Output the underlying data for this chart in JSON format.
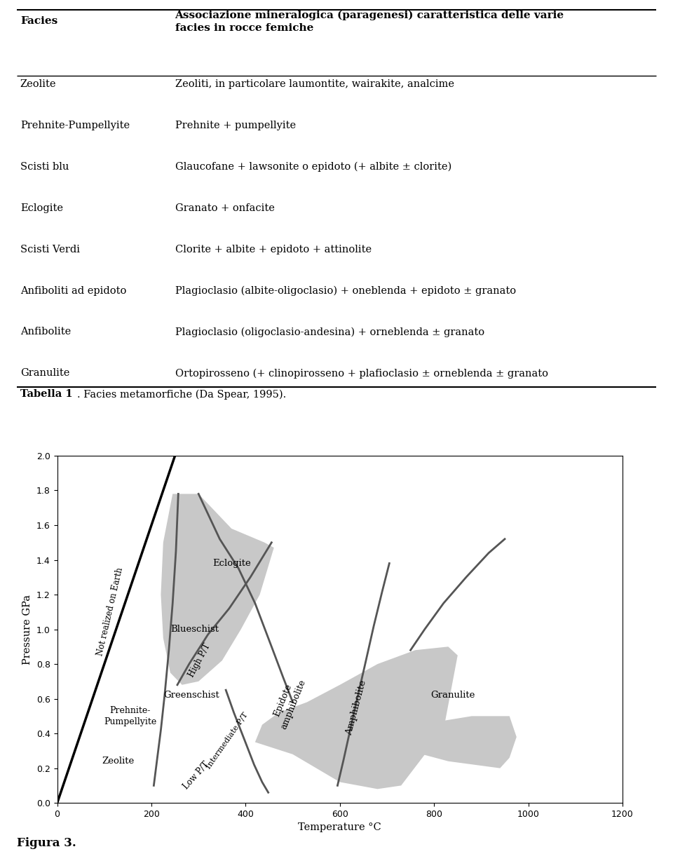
{
  "table_title_col1": "Facies",
  "table_title_col2": "Associazione mineralogica (paragenesi) caratteristica delle varie\nfacies in rocce femiche",
  "table_rows": [
    [
      "Zeolite",
      "Zeoliti, in particolare laumontite, wairakite, analcime"
    ],
    [
      "Prehnite-Pumpellyite",
      "Prehnite + pumpellyite"
    ],
    [
      "Scisti blu",
      "Glaucofane + lawsonite o epidoto (+ albite ± clorite)"
    ],
    [
      "Eclogite",
      "Granato + onfacite"
    ],
    [
      "Scisti Verdi",
      "Clorite + albite + epidoto + attinolite"
    ],
    [
      "Anfiboliti ad epidoto",
      "Plagioclasio (albite-oligoclasio) + oneblenda + epidoto ± granato"
    ],
    [
      "Anfibolite",
      "Plagioclasio (oligoclasio-andesina) + orneblenda ± granato"
    ],
    [
      "Granulite",
      "Ortopirosseno (+ clinopirosseno + plafioclasio ± orneblenda ± granato"
    ]
  ],
  "caption_bold": "Tabella 1",
  "caption_normal": ". Facies metamorfiche (Da Spear, 1995).",
  "xlabel": "Temperature °C",
  "ylabel": "Pressure GPa",
  "xlim": [
    0,
    1200
  ],
  "ylim": [
    0,
    2
  ],
  "xticks": [
    0,
    200,
    400,
    600,
    800,
    1000,
    1200
  ],
  "yticks": [
    0,
    0.2,
    0.4,
    0.6,
    0.8,
    1.0,
    1.2,
    1.4,
    1.6,
    1.8,
    2.0
  ],
  "fig_label": "Figura 3.",
  "line_color": "#555555",
  "black_line_color": "#000000",
  "shade_color": "#c8c8c8"
}
